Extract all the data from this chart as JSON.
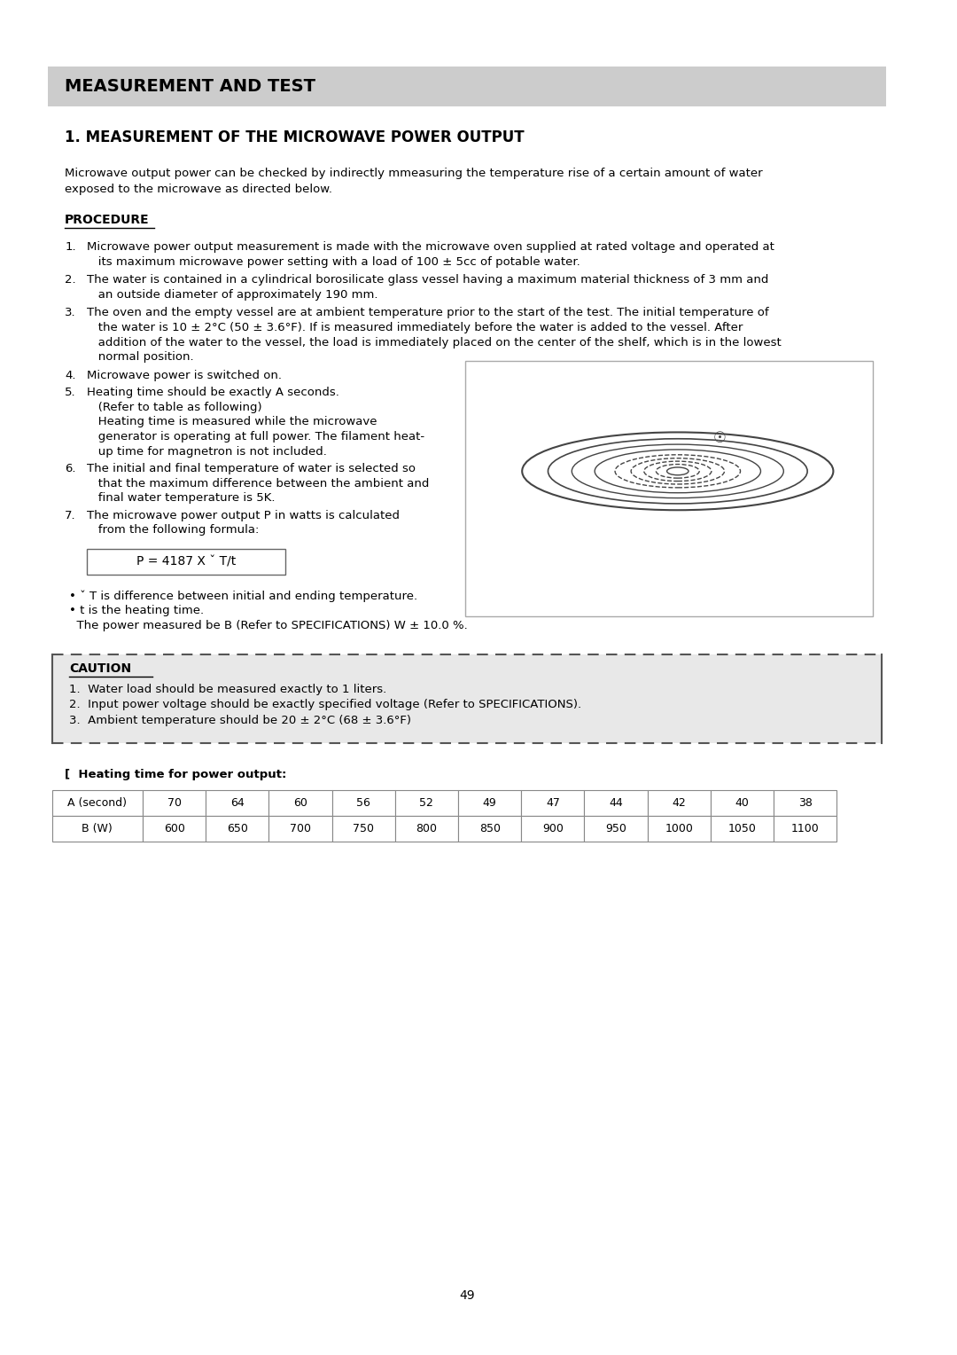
{
  "title_banner": "MEASUREMENT AND TEST",
  "title_banner_bg": "#cccccc",
  "section_title": "1. MEASUREMENT OF THE MICROWAVE POWER OUTPUT",
  "intro_line1": "Microwave output power can be checked by indirectly mmeasuring the temperature rise of a certain amount of water",
  "intro_line2": "exposed to the microwave as directed below.",
  "procedure_label": "PROCEDURE",
  "formula": "P = 4187 X ˇ T/t",
  "bullet1": "• ˇ T is difference between initial and ending temperature.",
  "bullet2": "• t is the heating time.",
  "bullet3": "  The power measured be B (Refer to SPECIFICATIONS) W ± 10.0 %.",
  "caution_label": "CAUTION",
  "caution_items": [
    "1.  Water load should be measured exactly to 1 liters.",
    "2.  Input power voltage should be exactly specified voltage (Refer to SPECIFICATIONS).",
    "3.  Ambient temperature should be 20 ± 2°C (68 ± 3.6°F)"
  ],
  "table_label": "[  Heating time for power output:",
  "table_row1_label": "A (second)",
  "table_row2_label": "B (W)",
  "table_row1_values": [
    "70",
    "64",
    "60",
    "56",
    "52",
    "49",
    "47",
    "44",
    "42",
    "40",
    "38"
  ],
  "table_row2_values": [
    "600",
    "650",
    "700",
    "750",
    "800",
    "850",
    "900",
    "950",
    "1000",
    "1050",
    "1100"
  ],
  "page_number": "49",
  "bg_color": "#ffffff",
  "text_color": "#000000",
  "caution_bg": "#e8e8e8",
  "banner_bg": "#cccccc"
}
